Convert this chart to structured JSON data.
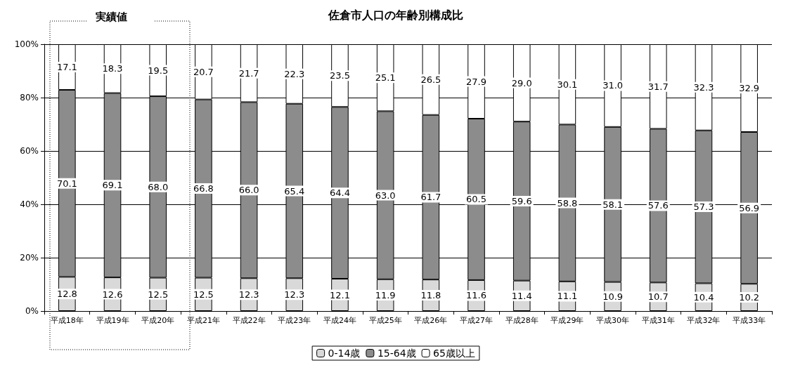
{
  "chart_data": {
    "type": "bar",
    "title": "佐倉市人口の年齢別構成比",
    "stacked": true,
    "grid": "y",
    "legend": "bottom",
    "annotations": [
      "実績値"
    ],
    "categories": [
      "平成18年",
      "平成19年",
      "平成20年",
      "平成21年",
      "平成22年",
      "平成23年",
      "平成24年",
      "平成25年",
      "平成26年",
      "平成27年",
      "平成28年",
      "平成29年",
      "平成30年",
      "平成31年",
      "平成32年",
      "平成33年"
    ],
    "ylim": [
      0,
      100
    ],
    "yticks": [
      {
        "value": 0,
        "label": "0%"
      },
      {
        "value": 20,
        "label": "20%"
      },
      {
        "value": 40,
        "label": "40%"
      },
      {
        "value": 60,
        "label": "60%"
      },
      {
        "value": 80,
        "label": "80%"
      },
      {
        "value": 100,
        "label": "100%"
      }
    ],
    "series": [
      {
        "name": "0-14歳",
        "color": "#d9d9d9",
        "values": [
          12.8,
          12.6,
          12.5,
          12.5,
          12.3,
          12.3,
          12.1,
          11.9,
          11.8,
          11.6,
          11.4,
          11.1,
          10.9,
          10.7,
          10.4,
          10.2
        ],
        "value_labels": [
          "12.8",
          "12.6",
          "12.5",
          "12.5",
          "12.3",
          "12.3",
          "12.1",
          "11.9",
          "11.8",
          "11.6",
          "11.4",
          "11.1",
          "10.9",
          "10.7",
          "10.4",
          "10.2"
        ]
      },
      {
        "name": "15-64歳",
        "color": "#8c8c8c",
        "values": [
          70.1,
          69.1,
          68.0,
          66.8,
          66.0,
          65.4,
          64.4,
          63.0,
          61.7,
          60.5,
          59.6,
          58.8,
          58.1,
          57.6,
          57.3,
          56.9
        ],
        "value_labels": [
          "70.1",
          "69.1",
          "68.0",
          "66.8",
          "66.0",
          "65.4",
          "64.4",
          "63.0",
          "61.7",
          "60.5",
          "59.6",
          "58.8",
          "58.1",
          "57.6",
          "57.3",
          "56.9"
        ]
      },
      {
        "name": "65歳以上",
        "color": "#ffffff",
        "values": [
          17.1,
          18.3,
          19.5,
          20.7,
          21.7,
          22.3,
          23.5,
          25.1,
          26.5,
          27.9,
          29.0,
          30.1,
          31.0,
          31.7,
          32.3,
          32.9
        ],
        "value_labels": [
          "17.1",
          "18.3",
          "19.5",
          "20.7",
          "21.7",
          "22.3",
          "23.5",
          "25.1",
          "26.5",
          "27.9",
          "29.0",
          "30.1",
          "31.0",
          "31.7",
          "32.3",
          "32.9"
        ]
      }
    ]
  }
}
